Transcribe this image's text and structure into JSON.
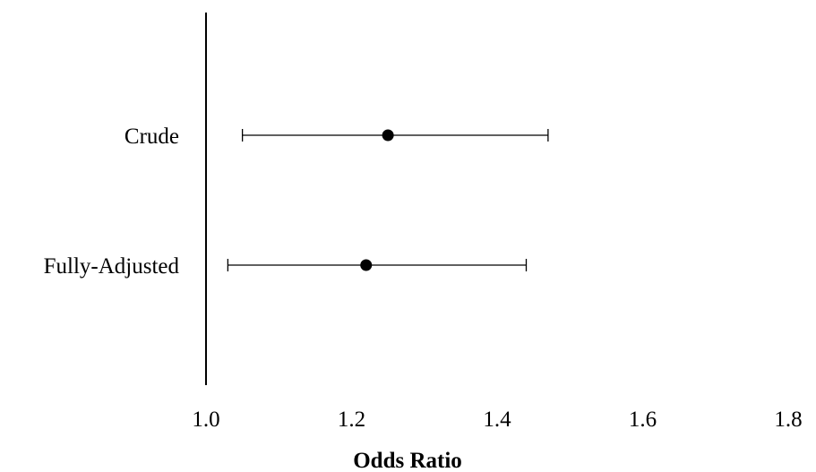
{
  "chart_data": {
    "type": "forest",
    "xlabel": "Odds Ratio",
    "xlim": [
      1.0,
      1.8
    ],
    "xticks": [
      1.0,
      1.2,
      1.4,
      1.6,
      1.8
    ],
    "xtick_labels": [
      "1.0",
      "1.2",
      "1.4",
      "1.6",
      "1.8"
    ],
    "reference_line": 1.0,
    "rows": [
      {
        "label": "Crude",
        "estimate": 1.25,
        "lower": 1.05,
        "upper": 1.47
      },
      {
        "label": "Fully-Adjusted",
        "estimate": 1.22,
        "lower": 1.03,
        "upper": 1.44
      }
    ],
    "marker_color": "#000000",
    "line_color": "#000000"
  }
}
